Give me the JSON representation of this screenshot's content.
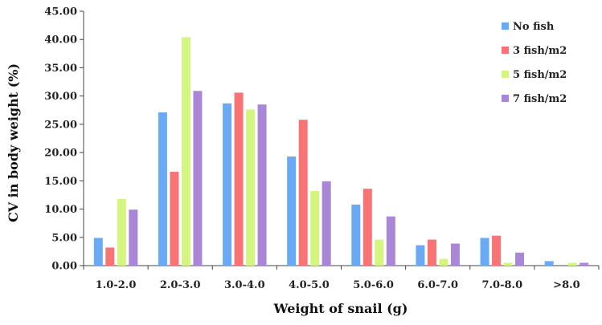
{
  "chart_data": {
    "type": "bar",
    "categories": [
      "1.0-2.0",
      "2.0-3.0",
      "3.0-4.0",
      "4.0-5.0",
      "5.0-6.0",
      "6.0-7.0",
      "7.0-8.0",
      ">8.0"
    ],
    "series": [
      {
        "name": "No fish",
        "color": "#6aaaf5",
        "values": [
          4.9,
          27.1,
          28.7,
          19.3,
          10.8,
          3.6,
          4.9,
          0.8
        ]
      },
      {
        "name": "3 fish/m2",
        "color": "#f87474",
        "values": [
          3.2,
          16.6,
          30.6,
          25.8,
          13.6,
          4.6,
          5.3,
          0.0
        ]
      },
      {
        "name": "5 fish/m2",
        "color": "#d4f580",
        "values": [
          11.8,
          40.4,
          27.6,
          13.2,
          4.6,
          1.2,
          0.5,
          0.5
        ]
      },
      {
        "name": "7 fish/m2",
        "color": "#aa86d6",
        "values": [
          9.9,
          30.9,
          28.5,
          14.9,
          8.7,
          3.9,
          2.3,
          0.5
        ]
      }
    ],
    "xlabel": "Weight of snail (g)",
    "ylabel": "CV in body weight (%)",
    "ylim": [
      0,
      45
    ],
    "yticks": [
      "0.00",
      "5.00",
      "10.00",
      "15.00",
      "20.00",
      "25.00",
      "30.00",
      "35.00",
      "40.00",
      "45.00"
    ],
    "grid": false,
    "legend": "top-right"
  }
}
